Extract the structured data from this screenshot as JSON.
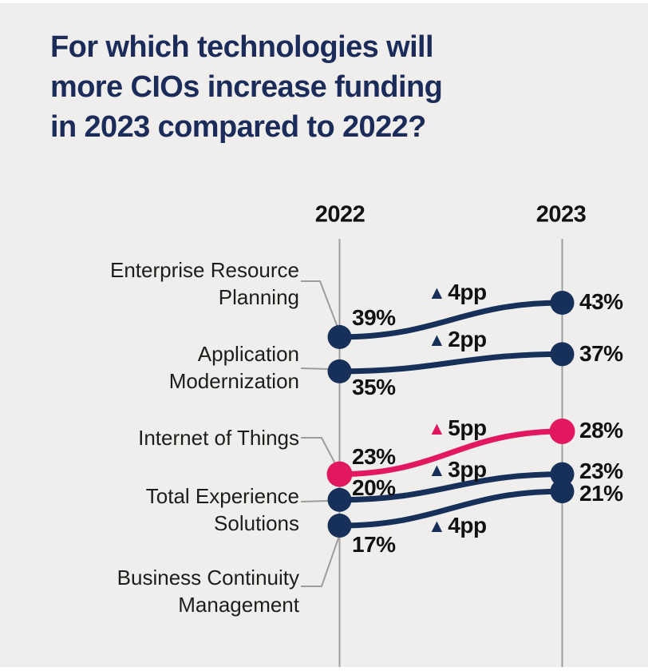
{
  "page": {
    "title_lines": [
      "For which technologies will",
      "more CIOs increase funding",
      "in 2023 compared to 2022?"
    ],
    "title_color": "#1b2c5a",
    "background_color": "#efeeec"
  },
  "chart_data": {
    "type": "line",
    "subtype": "slopegraph",
    "title": "For which technologies will more CIOs increase funding in 2023 compared to 2022?",
    "columns": [
      "2022",
      "2023"
    ],
    "unit": "%",
    "change_unit": "pp",
    "change_marker": "▲",
    "value_axis_range": [
      17,
      43
    ],
    "grid": "off",
    "colors": {
      "navy": "#17305a",
      "pink": "#e1175f",
      "axis_line": "#9d9d9b",
      "connector_line": "#9d9d9b",
      "value_text": "#111111",
      "category_text": "#1d1d1b"
    },
    "series": [
      {
        "name": "Enterprise Resource Planning",
        "name_lines": [
          "Enterprise Resource",
          "Planning"
        ],
        "values": [
          39,
          43
        ],
        "value_labels": [
          "39%",
          "43%"
        ],
        "change": "4pp",
        "color": "navy"
      },
      {
        "name": "Application Modernization",
        "name_lines": [
          "Application",
          "Modernization"
        ],
        "values": [
          35,
          37
        ],
        "value_labels": [
          "35%",
          "37%"
        ],
        "change": "2pp",
        "color": "navy"
      },
      {
        "name": "Internet of Things",
        "name_lines": [
          "Internet of Things"
        ],
        "values": [
          23,
          28
        ],
        "value_labels": [
          "23%",
          "28%"
        ],
        "change": "5pp",
        "color": "pink"
      },
      {
        "name": "Total Experience Solutions",
        "name_lines": [
          "Total Experience",
          "Solutions"
        ],
        "values": [
          20,
          23
        ],
        "value_labels": [
          "20%",
          "23%"
        ],
        "change": "3pp",
        "color": "navy"
      },
      {
        "name": "Business Continuity Management",
        "name_lines": [
          "Business Continuity",
          "Management"
        ],
        "values": [
          17,
          21
        ],
        "value_labels": [
          "17%",
          "21%"
        ],
        "change": "4pp",
        "color": "navy"
      }
    ]
  }
}
